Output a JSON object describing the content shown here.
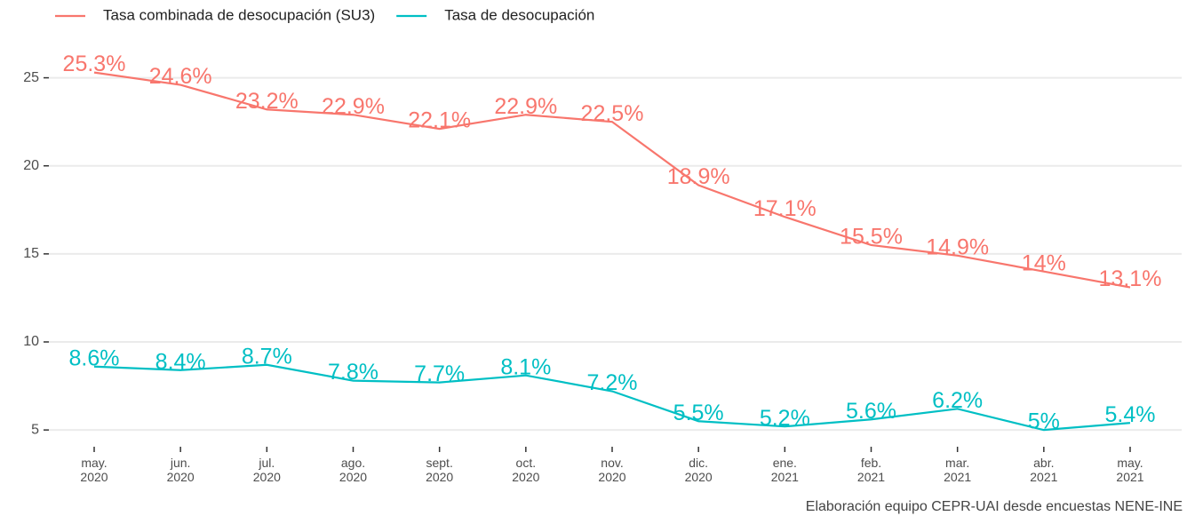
{
  "chart_data": {
    "type": "line",
    "categories": [
      "may.\n2020",
      "jun.\n2020",
      "jul.\n2020",
      "ago.\n2020",
      "sept.\n2020",
      "oct.\n2020",
      "nov.\n2020",
      "dic.\n2020",
      "ene.\n2021",
      "feb.\n2021",
      "mar.\n2021",
      "abr.\n2021",
      "may.\n2021"
    ],
    "series": [
      {
        "name": "Tasa combinada de desocupación (SU3)",
        "color": "#F8766D",
        "values": [
          25.3,
          24.6,
          23.2,
          22.9,
          22.1,
          22.9,
          22.5,
          18.9,
          17.1,
          15.5,
          14.9,
          14,
          13.1
        ],
        "value_labels": [
          "25.3%",
          "24.6%",
          "23.2%",
          "22.9%",
          "22.1%",
          "22.9%",
          "22.5%",
          "18.9%",
          "17.1%",
          "15.5%",
          "14.9%",
          "14%",
          "13.1%"
        ]
      },
      {
        "name": "Tasa de desocupación",
        "color": "#00BFC4",
        "values": [
          8.6,
          8.4,
          8.7,
          7.8,
          7.7,
          8.1,
          7.2,
          5.5,
          5.2,
          5.6,
          6.2,
          5,
          5.4
        ],
        "value_labels": [
          "8.6%",
          "8.4%",
          "8.7%",
          "7.8%",
          "7.7%",
          "8.1%",
          "7.2%",
          "5.5%",
          "5.2%",
          "5.6%",
          "6.2%",
          "5%",
          "5.4%"
        ]
      }
    ],
    "ylim": [
      4.2,
      27.4
    ],
    "yticks": [
      5,
      10,
      15,
      20,
      25
    ],
    "grid": true,
    "caption": "Elaboración equipo CEPR-UAI desde encuestas NENE-INE"
  }
}
